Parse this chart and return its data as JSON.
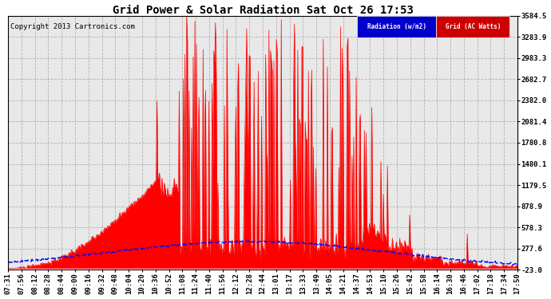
{
  "title": "Grid Power & Solar Radiation Sat Oct 26 17:53",
  "copyright": "Copyright 2013 Cartronics.com",
  "yticks": [
    3584.5,
    3283.9,
    2983.3,
    2682.7,
    2382.0,
    2081.4,
    1780.8,
    1480.1,
    1179.5,
    878.9,
    578.3,
    277.6,
    -23.0
  ],
  "ymin": -23.0,
  "ymax": 3584.5,
  "xtick_labels": [
    "07:31",
    "07:56",
    "08:12",
    "08:28",
    "08:44",
    "09:00",
    "09:16",
    "09:32",
    "09:48",
    "10:04",
    "10:20",
    "10:36",
    "10:52",
    "11:08",
    "11:24",
    "11:40",
    "11:56",
    "12:12",
    "12:28",
    "12:44",
    "13:01",
    "13:17",
    "13:33",
    "13:49",
    "14:05",
    "14:21",
    "14:37",
    "14:53",
    "15:10",
    "15:26",
    "15:42",
    "15:58",
    "16:14",
    "16:30",
    "16:46",
    "17:02",
    "17:18",
    "17:34",
    "17:50"
  ],
  "background_color": "#ffffff",
  "grid_color": "#b0b0b0",
  "plot_bg": "#e8e8e8",
  "red_fill": "#ff0000",
  "blue_line": "#0000ff",
  "legend_radiation_bg": "#0000cc",
  "legend_grid_bg": "#cc0000",
  "legend_text_color": "#ffffff",
  "title_fontsize": 10,
  "tick_fontsize": 6.5,
  "copyright_fontsize": 6.5
}
